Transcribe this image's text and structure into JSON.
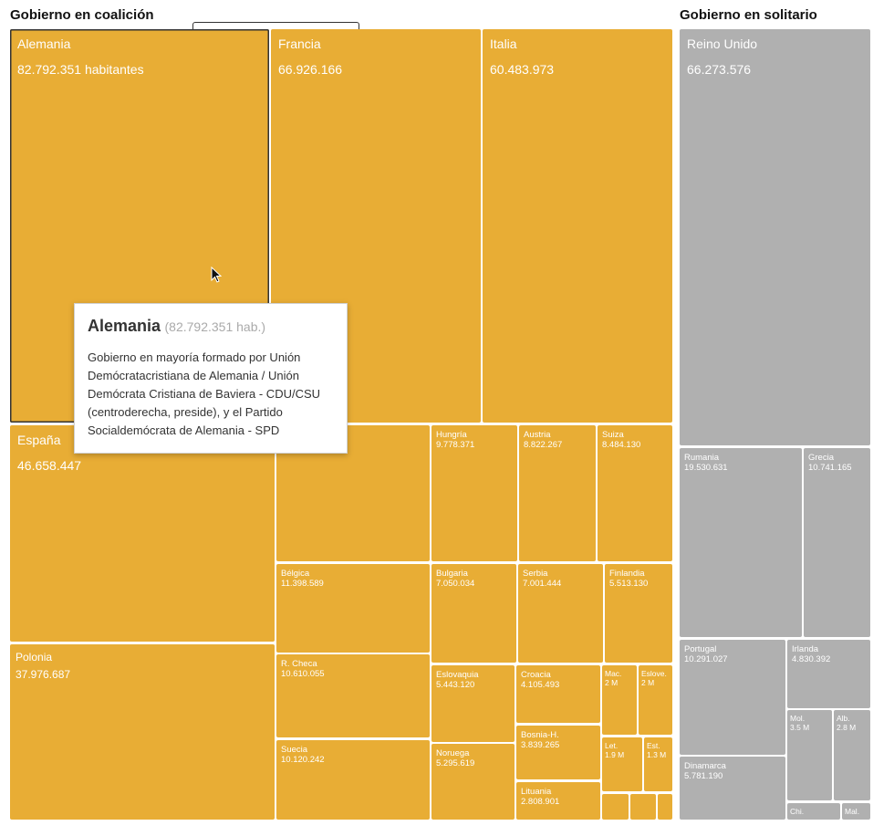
{
  "chart_data": {
    "type": "treemap",
    "groups": [
      {
        "name": "Gobierno en coalición",
        "color": "#e8ad35",
        "items": [
          {
            "name": "Alemania",
            "label": "82.792.351 habitantes",
            "value": 82792351
          },
          {
            "name": "Francia",
            "label": "66.926.166",
            "value": 66926166
          },
          {
            "name": "Italia",
            "label": "60.483.973",
            "value": 60483973
          },
          {
            "name": "España",
            "label": "46.658.447",
            "value": 46658447
          },
          {
            "name": "Polonia",
            "label": "37.976.687",
            "value": 37976687
          },
          {
            "name": "",
            "label": "",
            "value": 17180000
          },
          {
            "name": "Hungría",
            "label": "9.778.371",
            "value": 9778371
          },
          {
            "name": "Austria",
            "label": "8.822.267",
            "value": 8822267
          },
          {
            "name": "Suiza",
            "label": "8.484.130",
            "value": 8484130
          },
          {
            "name": "Bélgica",
            "label": "11.398.589",
            "value": 11398589
          },
          {
            "name": "Bulgaria",
            "label": "7.050.034",
            "value": 7050034
          },
          {
            "name": "Serbia",
            "label": "7.001.444",
            "value": 7001444
          },
          {
            "name": "Finlandia",
            "label": "5.513.130",
            "value": 5513130
          },
          {
            "name": "R. Checa",
            "label": "10.610.055",
            "value": 10610055
          },
          {
            "name": "Eslovaquia",
            "label": "5.443.120",
            "value": 5443120
          },
          {
            "name": "Croacia",
            "label": "4.105.493",
            "value": 4105493
          },
          {
            "name": "Mac.",
            "label": "2 M",
            "value": 2075301
          },
          {
            "name": "Eslove.",
            "label": "2 M",
            "value": 2066880
          },
          {
            "name": "Bosnia-H.",
            "label": "3.839.265",
            "value": 3839265
          },
          {
            "name": "Let.",
            "label": "1.9 M",
            "value": 1934379
          },
          {
            "name": "Est.",
            "label": "1.3 M",
            "value": 1319133
          },
          {
            "name": "Suecia",
            "label": "10.120.242",
            "value": 10120242
          },
          {
            "name": "Noruega",
            "label": "5.295.619",
            "value": 5295619
          },
          {
            "name": "Lituania",
            "label": "2.808.901",
            "value": 2808901
          },
          {
            "name": "",
            "label": "",
            "value": 620000
          },
          {
            "name": "",
            "label": "",
            "value": 600000
          },
          {
            "name": "",
            "label": "",
            "value": 460000
          }
        ]
      },
      {
        "name": "Gobierno en solitario",
        "color": "#b0b0b0",
        "items": [
          {
            "name": "Reino Unido",
            "label": "66.273.576",
            "value": 66273576
          },
          {
            "name": "Rumania",
            "label": "19.530.631",
            "value": 19530631
          },
          {
            "name": "Grecia",
            "label": "10.741.165",
            "value": 10741165
          },
          {
            "name": "Portugal",
            "label": "10.291.027",
            "value": 10291027
          },
          {
            "name": "Irlanda",
            "label": "4.830.392",
            "value": 4830392
          },
          {
            "name": "Mol.",
            "label": "3.5 M",
            "value": 3547539
          },
          {
            "name": "Alb.",
            "label": "2.8 M",
            "value": 2870324
          },
          {
            "name": "Dinamarca",
            "label": "5.781.190",
            "value": 5781190
          },
          {
            "name": "Chi.",
            "label": "",
            "value": 864236
          },
          {
            "name": "Mal.",
            "label": "",
            "value": 475701
          }
        ]
      }
    ]
  },
  "tooltip": {
    "name": "Alemania",
    "value": "(82.792.351 hab.)",
    "description": "Gobierno en mayoría formado por Unión Demócratacristiana de Alemania / Unión Demócrata Cristiana de Baviera - CDU/CSU (centroderecha, preside), y el Partido Socialdemócrata de Alemania - SPD"
  },
  "colors": {
    "coalition": "#e8ad35",
    "solo": "#b0b0b0"
  }
}
